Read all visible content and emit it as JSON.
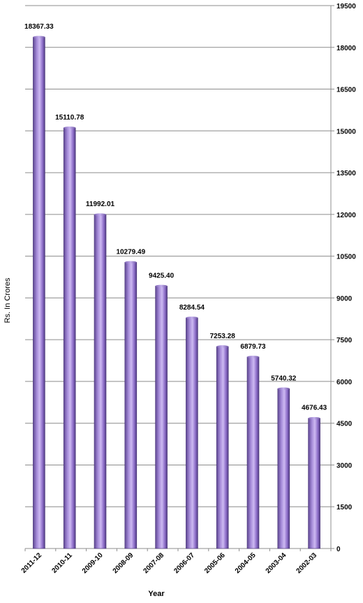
{
  "chart_data": {
    "type": "bar",
    "categories": [
      "2011-12",
      "2010-11",
      "2009-10",
      "2008-09",
      "2007-08",
      "2006-07",
      "2005-06",
      "2004-05",
      "2003-04",
      "2002-03"
    ],
    "values": [
      18367.33,
      15110.78,
      11992.01,
      10279.49,
      9425.4,
      8284.54,
      7253.28,
      6879.73,
      5740.32,
      4676.43
    ],
    "data_labels": [
      "18367.33",
      "15110.78",
      "11992.01",
      "10279.49",
      "9425.40",
      "8284.54",
      "7253.28",
      "6879.73",
      "5740.32",
      "4676.43"
    ],
    "xlabel": "Year",
    "ylabel": "Rs. In Crores",
    "ylim": [
      0,
      19500
    ],
    "yticks": [
      0,
      1500,
      3000,
      4500,
      6000,
      7500,
      9000,
      10500,
      12000,
      13500,
      15000,
      16500,
      18000,
      19500
    ],
    "y_axis_side": "right",
    "grid": true,
    "bar_color": "#8a6cc4"
  }
}
